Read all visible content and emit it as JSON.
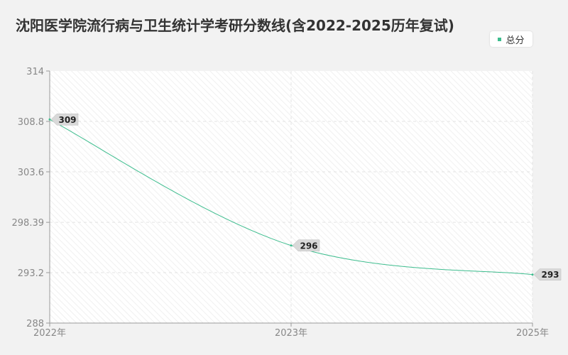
{
  "chart_data": {
    "type": "line",
    "title": "沈阳医学院流行病与卫生统计学考研分数线(含2022-2025历年复试)",
    "xlabel": "",
    "ylabel": "",
    "categories": [
      "2022年",
      "2023年",
      "2025年"
    ],
    "y_ticks": [
      "314",
      "308.8",
      "303.6",
      "298.39",
      "293.2",
      "288"
    ],
    "ylim": [
      288,
      314
    ],
    "grid": true,
    "legend_position": "top-right",
    "series": [
      {
        "name": "总分",
        "values": [
          309,
          296,
          293
        ],
        "labels": [
          "309",
          "296",
          "293"
        ],
        "color": "#3dbd8e"
      }
    ]
  }
}
